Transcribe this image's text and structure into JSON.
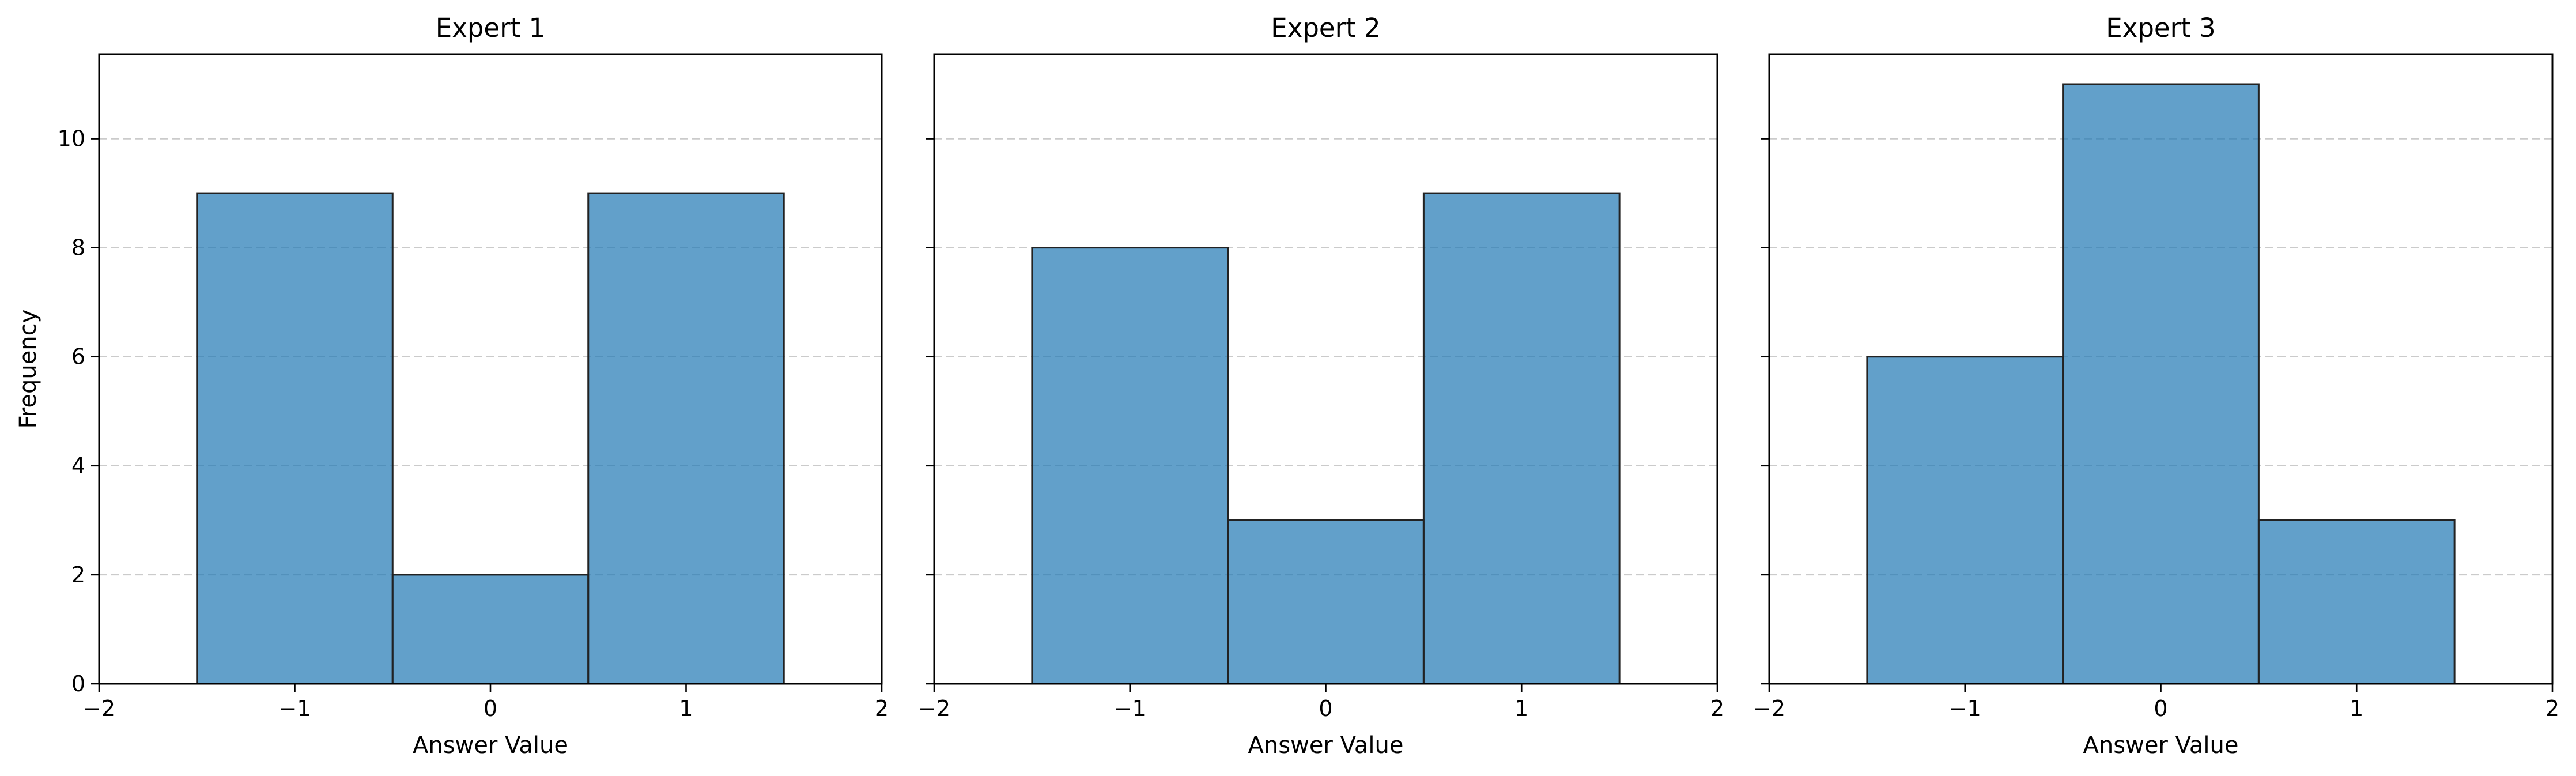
{
  "chart_data": [
    {
      "type": "bar",
      "title": "Expert 1",
      "xlabel": "Answer Value",
      "ylabel": "Frequency",
      "x": [
        -1,
        0,
        1
      ],
      "values": [
        9,
        2,
        9
      ],
      "bin_width": 1,
      "xlim": [
        -2,
        2
      ],
      "ylim": [
        0,
        11.55
      ],
      "xticks": [
        -2,
        -1,
        0,
        1,
        2
      ],
      "xtick_labels": [
        "−2",
        "−1",
        "0",
        "1",
        "2"
      ],
      "yticks": [
        0,
        2,
        4,
        6,
        8,
        10
      ],
      "ytick_labels": [
        "0",
        "2",
        "4",
        "6",
        "8",
        "10"
      ],
      "grid": "y-dashed",
      "color": "#1f77b4"
    },
    {
      "type": "bar",
      "title": "Expert 2",
      "xlabel": "Answer Value",
      "ylabel": "",
      "x": [
        -1,
        0,
        1
      ],
      "values": [
        8,
        3,
        9
      ],
      "bin_width": 1,
      "xlim": [
        -2,
        2
      ],
      "ylim": [
        0,
        11.55
      ],
      "xticks": [
        -2,
        -1,
        0,
        1,
        2
      ],
      "xtick_labels": [
        "−2",
        "−1",
        "0",
        "1",
        "2"
      ],
      "yticks": [
        0,
        2,
        4,
        6,
        8,
        10
      ],
      "ytick_labels": [],
      "grid": "y-dashed",
      "color": "#1f77b4"
    },
    {
      "type": "bar",
      "title": "Expert 3",
      "xlabel": "Answer Value",
      "ylabel": "",
      "x": [
        -1,
        0,
        1
      ],
      "values": [
        6,
        11,
        3
      ],
      "bin_width": 1,
      "xlim": [
        -2,
        2
      ],
      "ylim": [
        0,
        11.55
      ],
      "xticks": [
        -2,
        -1,
        0,
        1,
        2
      ],
      "xtick_labels": [
        "−2",
        "−1",
        "0",
        "1",
        "2"
      ],
      "yticks": [
        0,
        2,
        4,
        6,
        8,
        10
      ],
      "ytick_labels": [],
      "grid": "y-dashed",
      "color": "#1f77b4"
    }
  ]
}
